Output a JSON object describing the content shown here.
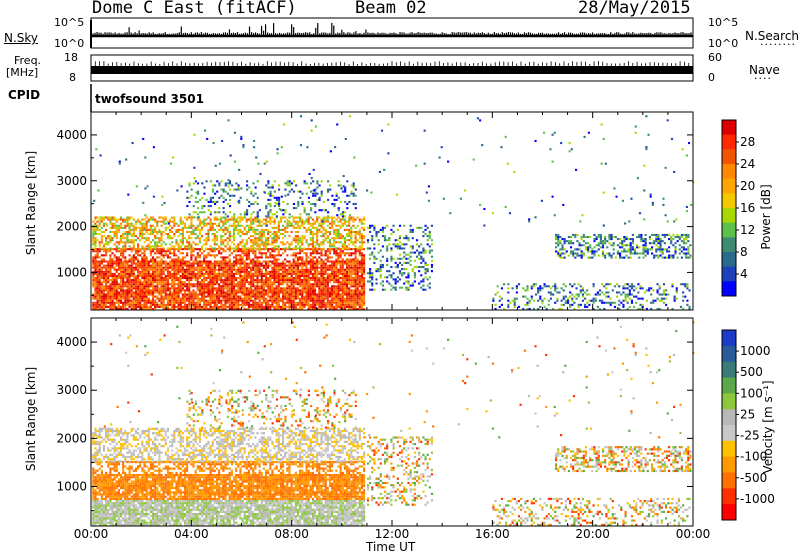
{
  "header": {
    "station": "Dome C East (fitACF)",
    "beam": "Beam 02",
    "date": "28/May/2015"
  },
  "strips": {
    "nsky_label": "N.Sky",
    "nsky_ticks": [
      "10^5",
      "10^0"
    ],
    "nsearch_label": "N.Search",
    "nsearch_ticks": [
      "10^5",
      "10^0"
    ],
    "freq_label_line1": "Freq.",
    "freq_label_line2": "[MHz]",
    "freq_ticks": [
      "18",
      "8"
    ],
    "nave_label": "Nave",
    "nave_ticks": [
      "60",
      "0"
    ],
    "cpid_label": "CPID",
    "cpid_value": "twofsound 3501"
  },
  "chart_data": [
    {
      "type": "heatmap",
      "name": "power",
      "ylabel": "Slant Range [km]",
      "xlabel": "",
      "xlim": [
        0,
        24
      ],
      "ylim": [
        180,
        4500
      ],
      "yticks": [
        1000,
        2000,
        3000,
        4000
      ],
      "colorbar": {
        "label": "Power [dB]",
        "ticks": [
          "28",
          "24",
          "20",
          "16",
          "12",
          "8",
          "4"
        ],
        "colors": [
          "#dd0000",
          "#ff2a00",
          "#f25500",
          "#ff8800",
          "#ffa500",
          "#f2c800",
          "#a8d800",
          "#5cc04a",
          "#3f8a72",
          "#2a6a8a",
          "#1e40b8",
          "#0000ff"
        ]
      }
    },
    {
      "type": "heatmap",
      "name": "velocity",
      "ylabel": "Slant Range [km]",
      "xlabel": "Time UT",
      "xlim": [
        0,
        24
      ],
      "ylim": [
        180,
        4500
      ],
      "yticks": [
        1000,
        2000,
        3000,
        4000
      ],
      "xticks": [
        "00:00",
        "04:00",
        "08:00",
        "12:00",
        "16:00",
        "20:00",
        "00:00"
      ],
      "colorbar": {
        "label": "Velocity [m s⁻¹]",
        "ticks": [
          "1000",
          "500",
          "100",
          "25",
          "-25",
          "-100",
          "-500",
          "-1000"
        ],
        "colors": [
          "#1a3cc8",
          "#2a5a98",
          "#3a7a78",
          "#5aa84a",
          "#8cc83a",
          "#b8b8b8",
          "#c8c8c8",
          "#ffc000",
          "#ff9900",
          "#ff7000",
          "#ff3000",
          "#ff0000"
        ]
      }
    }
  ]
}
